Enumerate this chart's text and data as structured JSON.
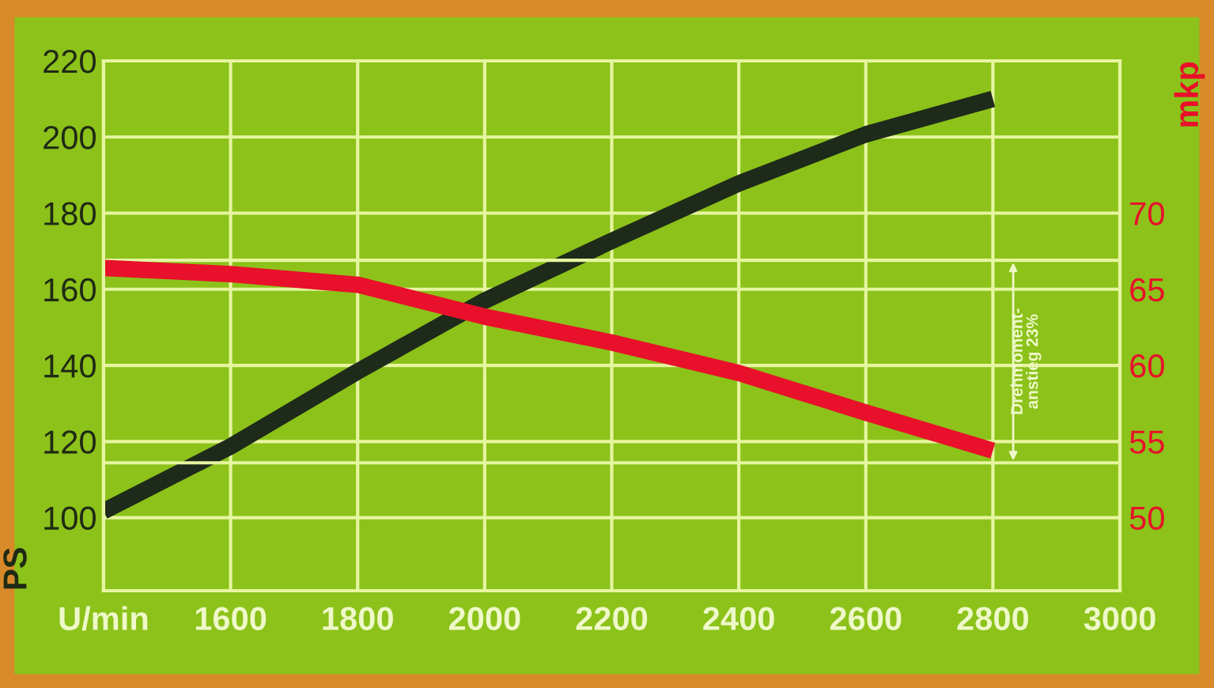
{
  "chart_data": {
    "type": "line",
    "x": [
      1400,
      1600,
      1800,
      2000,
      2200,
      2400,
      2600,
      2800
    ],
    "series": [
      {
        "color": "#1e2a1a",
        "values": [
          101.7,
          118.7,
          138.4,
          157,
          172.7,
          187.8,
          200.7,
          210
        ]
      },
      {
        "color": "#e8102a",
        "axis": "y2",
        "values": [
          66.4,
          66.0,
          65.3,
          63.2,
          61.5,
          59.5,
          56.9,
          54.4
        ]
      }
    ],
    "xlim": [
      1400,
      3000
    ],
    "xticks": [
      {
        "value": 1400,
        "label": "U/min"
      },
      1600,
      1800,
      2000,
      2200,
      2400,
      2600,
      2800,
      3000
    ],
    "ylim": [
      80.8,
      220
    ],
    "yticks": [
      100,
      120,
      140,
      160,
      180,
      200,
      220
    ],
    "y2lim": [
      45.2,
      80
    ],
    "y2ticks": [
      50,
      55,
      60,
      65,
      70
    ],
    "ylabel": "PS",
    "y2label": "mkp",
    "ref_lines": [
      {
        "axis": "y2",
        "value": 66.9,
        "label": null
      },
      {
        "axis": "y2",
        "value": 53.6,
        "label": null
      }
    ],
    "annotations": [
      "Drehmoment-\nanstieg 23%"
    ],
    "grid": true,
    "legend": false
  }
}
